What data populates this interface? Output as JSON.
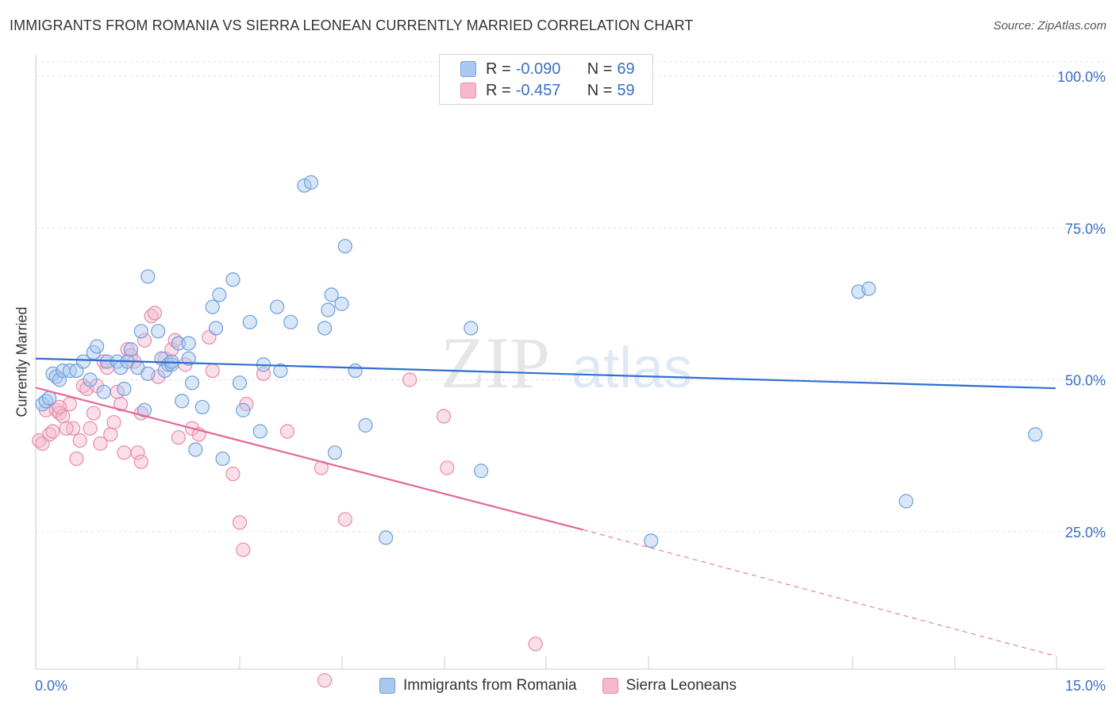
{
  "title": "IMMIGRANTS FROM ROMANIA VS SIERRA LEONEAN CURRENTLY MARRIED CORRELATION CHART",
  "source": "Source: ZipAtlas.com",
  "watermark": "ZIPatlas",
  "legend": {
    "blue": {
      "r_label": "R =",
      "r_value": "-0.090",
      "n_label": "N =",
      "n_value": "69"
    },
    "pink": {
      "r_label": "R =",
      "r_value": "-0.457",
      "n_label": "N =",
      "n_value": "59"
    }
  },
  "colors": {
    "blue_fill": "#a9c8f0",
    "blue_stroke": "#6e9fdc",
    "blue_line": "#2f6fd0",
    "pink_fill": "#f5b8cd",
    "pink_stroke": "#e98aaa",
    "pink_line": "#e0689a",
    "axis_text": "#3a6fc4",
    "grid": "#dddddd"
  },
  "chart_data": {
    "type": "scatter",
    "title": "IMMIGRANTS FROM ROMANIA VS SIERRA LEONEAN CURRENTLY MARRIED CORRELATION CHART",
    "xlabel": "",
    "ylabel": "Currently Married",
    "xlim": [
      0,
      15
    ],
    "ylim": [
      0,
      100
    ],
    "x_tick_labels": [
      "0.0%",
      "15.0%"
    ],
    "y_ticks": [
      25,
      50,
      75,
      100
    ],
    "y_tick_labels": [
      "25.0%",
      "50.0%",
      "75.0%",
      "100.0%"
    ],
    "grid": true,
    "series": [
      {
        "name": "Immigrants from Romania",
        "color": "blue",
        "trend": {
          "x0": 0,
          "y0": 53.5,
          "x1": 15,
          "y1": 48.6
        },
        "points": [
          [
            0.1,
            46
          ],
          [
            0.15,
            46.5
          ],
          [
            0.2,
            47
          ],
          [
            0.25,
            51
          ],
          [
            0.3,
            50.5
          ],
          [
            0.35,
            50
          ],
          [
            0.4,
            51.5
          ],
          [
            0.5,
            51.5
          ],
          [
            0.6,
            51.5
          ],
          [
            0.7,
            53
          ],
          [
            0.8,
            50
          ],
          [
            0.85,
            54.5
          ],
          [
            0.9,
            55.5
          ],
          [
            1.0,
            48
          ],
          [
            1.05,
            53
          ],
          [
            1.2,
            53
          ],
          [
            1.25,
            52
          ],
          [
            1.3,
            48.5
          ],
          [
            1.35,
            53
          ],
          [
            1.4,
            55
          ],
          [
            1.5,
            52
          ],
          [
            1.55,
            58
          ],
          [
            1.6,
            45
          ],
          [
            1.65,
            51
          ],
          [
            1.65,
            67
          ],
          [
            1.8,
            58
          ],
          [
            1.85,
            53.5
          ],
          [
            1.9,
            51.5
          ],
          [
            1.95,
            52.5
          ],
          [
            2.0,
            52.5
          ],
          [
            2.0,
            53
          ],
          [
            2.1,
            56
          ],
          [
            2.15,
            46.5
          ],
          [
            2.25,
            56
          ],
          [
            2.3,
            49.5
          ],
          [
            2.25,
            53.5
          ],
          [
            2.35,
            38.5
          ],
          [
            2.45,
            45.5
          ],
          [
            2.6,
            62
          ],
          [
            2.65,
            58.5
          ],
          [
            2.7,
            64
          ],
          [
            2.75,
            37
          ],
          [
            2.9,
            66.5
          ],
          [
            3.0,
            49.5
          ],
          [
            3.05,
            45
          ],
          [
            3.15,
            59.5
          ],
          [
            3.3,
            41.5
          ],
          [
            3.35,
            52.5
          ],
          [
            3.55,
            62
          ],
          [
            3.6,
            51.5
          ],
          [
            3.75,
            59.5
          ],
          [
            3.95,
            82
          ],
          [
            4.05,
            82.5
          ],
          [
            4.25,
            58.5
          ],
          [
            4.3,
            61.5
          ],
          [
            4.35,
            64
          ],
          [
            4.4,
            38
          ],
          [
            4.5,
            62.5
          ],
          [
            4.55,
            72
          ],
          [
            4.7,
            51.5
          ],
          [
            4.85,
            42.5
          ],
          [
            5.15,
            24
          ],
          [
            6.4,
            58.5
          ],
          [
            6.55,
            35
          ],
          [
            9.05,
            23.5
          ],
          [
            12.1,
            64.5
          ],
          [
            12.25,
            65
          ],
          [
            12.8,
            30
          ],
          [
            14.7,
            41
          ]
        ]
      },
      {
        "name": "Sierra Leoneans",
        "color": "pink",
        "trend": {
          "x0": 0,
          "y0": 48.7,
          "x1": 8.05,
          "y1": 25.3,
          "dashed_x1": 15,
          "dashed_y1": 4.5
        },
        "points": [
          [
            0.05,
            40
          ],
          [
            0.1,
            39.5
          ],
          [
            0.15,
            45
          ],
          [
            0.2,
            41
          ],
          [
            0.25,
            41.5
          ],
          [
            0.3,
            45
          ],
          [
            0.35,
            44.5
          ],
          [
            0.4,
            44
          ],
          [
            0.5,
            46
          ],
          [
            0.55,
            42
          ],
          [
            0.6,
            37
          ],
          [
            0.7,
            49
          ],
          [
            0.75,
            48.5
          ],
          [
            0.8,
            42
          ],
          [
            0.85,
            44.5
          ],
          [
            0.9,
            49
          ],
          [
            0.95,
            39.5
          ],
          [
            1.0,
            53
          ],
          [
            1.05,
            52
          ],
          [
            1.1,
            41
          ],
          [
            1.15,
            43
          ],
          [
            1.2,
            48
          ],
          [
            1.3,
            38
          ],
          [
            1.35,
            55
          ],
          [
            1.4,
            54
          ],
          [
            1.45,
            53
          ],
          [
            1.5,
            38
          ],
          [
            1.55,
            36.5
          ],
          [
            1.55,
            44.5
          ],
          [
            1.6,
            56.5
          ],
          [
            1.7,
            60.5
          ],
          [
            1.75,
            61
          ],
          [
            1.8,
            50.5
          ],
          [
            1.9,
            53.5
          ],
          [
            2.0,
            55
          ],
          [
            2.05,
            56.5
          ],
          [
            2.1,
            40.5
          ],
          [
            2.2,
            52.5
          ],
          [
            2.3,
            42
          ],
          [
            2.4,
            41
          ],
          [
            2.55,
            57
          ],
          [
            2.6,
            51.5
          ],
          [
            2.9,
            34.5
          ],
          [
            3.0,
            26.5
          ],
          [
            3.05,
            22
          ],
          [
            3.1,
            46
          ],
          [
            3.35,
            51
          ],
          [
            3.7,
            41.5
          ],
          [
            4.2,
            35.5
          ],
          [
            4.55,
            27
          ],
          [
            5.5,
            50
          ],
          [
            6.0,
            44
          ],
          [
            6.05,
            35.5
          ],
          [
            7.35,
            6.5
          ],
          [
            4.25,
            0.5
          ],
          [
            0.35,
            45.5
          ],
          [
            0.65,
            40
          ],
          [
            1.25,
            46
          ],
          [
            0.45,
            42
          ]
        ]
      }
    ]
  },
  "legend_bottom": {
    "blue_label": "Immigrants from Romania",
    "pink_label": "Sierra Leoneans"
  }
}
